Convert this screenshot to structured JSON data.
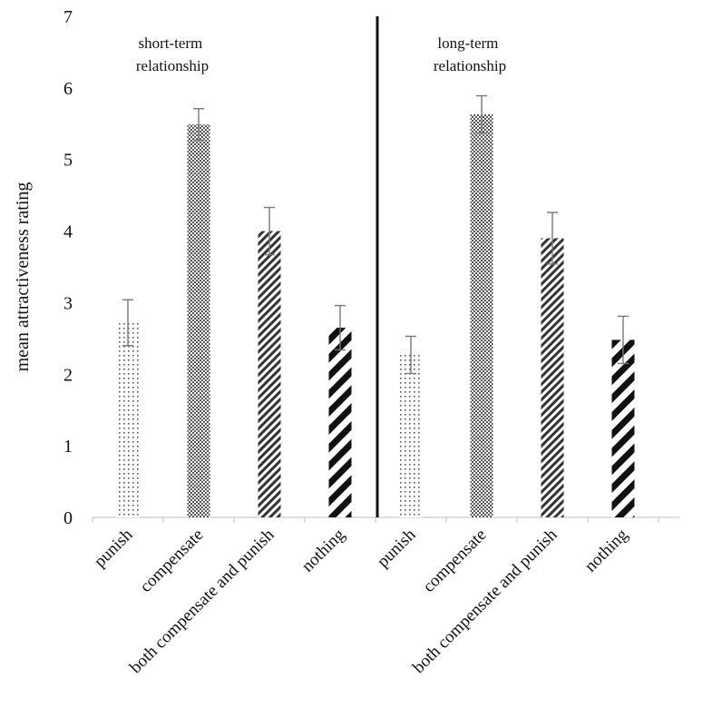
{
  "chart_data": {
    "type": "bar",
    "ylabel": "mean attractiveness rating",
    "ylim": [
      0,
      7
    ],
    "yticks": [
      0,
      1,
      2,
      3,
      4,
      5,
      6,
      7
    ],
    "grid": false,
    "legend": "none",
    "panels": [
      {
        "label_line1": "short-term",
        "label_line2": "relationship"
      },
      {
        "label_line1": "long-term",
        "label_line2": "relationship"
      }
    ],
    "categories": [
      "punish",
      "compensate",
      "both compensate and punish",
      "nothing",
      "punish",
      "compensate",
      "both compensate and punish",
      "nothing"
    ],
    "patterns": [
      "dots",
      "checker",
      "fine-diagonal",
      "wide-diagonal",
      "dots",
      "checker",
      "fine-diagonal",
      "wide-diagonal"
    ],
    "values": [
      2.72,
      5.49,
      4.0,
      2.65,
      2.27,
      5.63,
      3.9,
      2.48
    ],
    "error": [
      0.32,
      0.22,
      0.33,
      0.31,
      0.26,
      0.26,
      0.36,
      0.33
    ]
  }
}
